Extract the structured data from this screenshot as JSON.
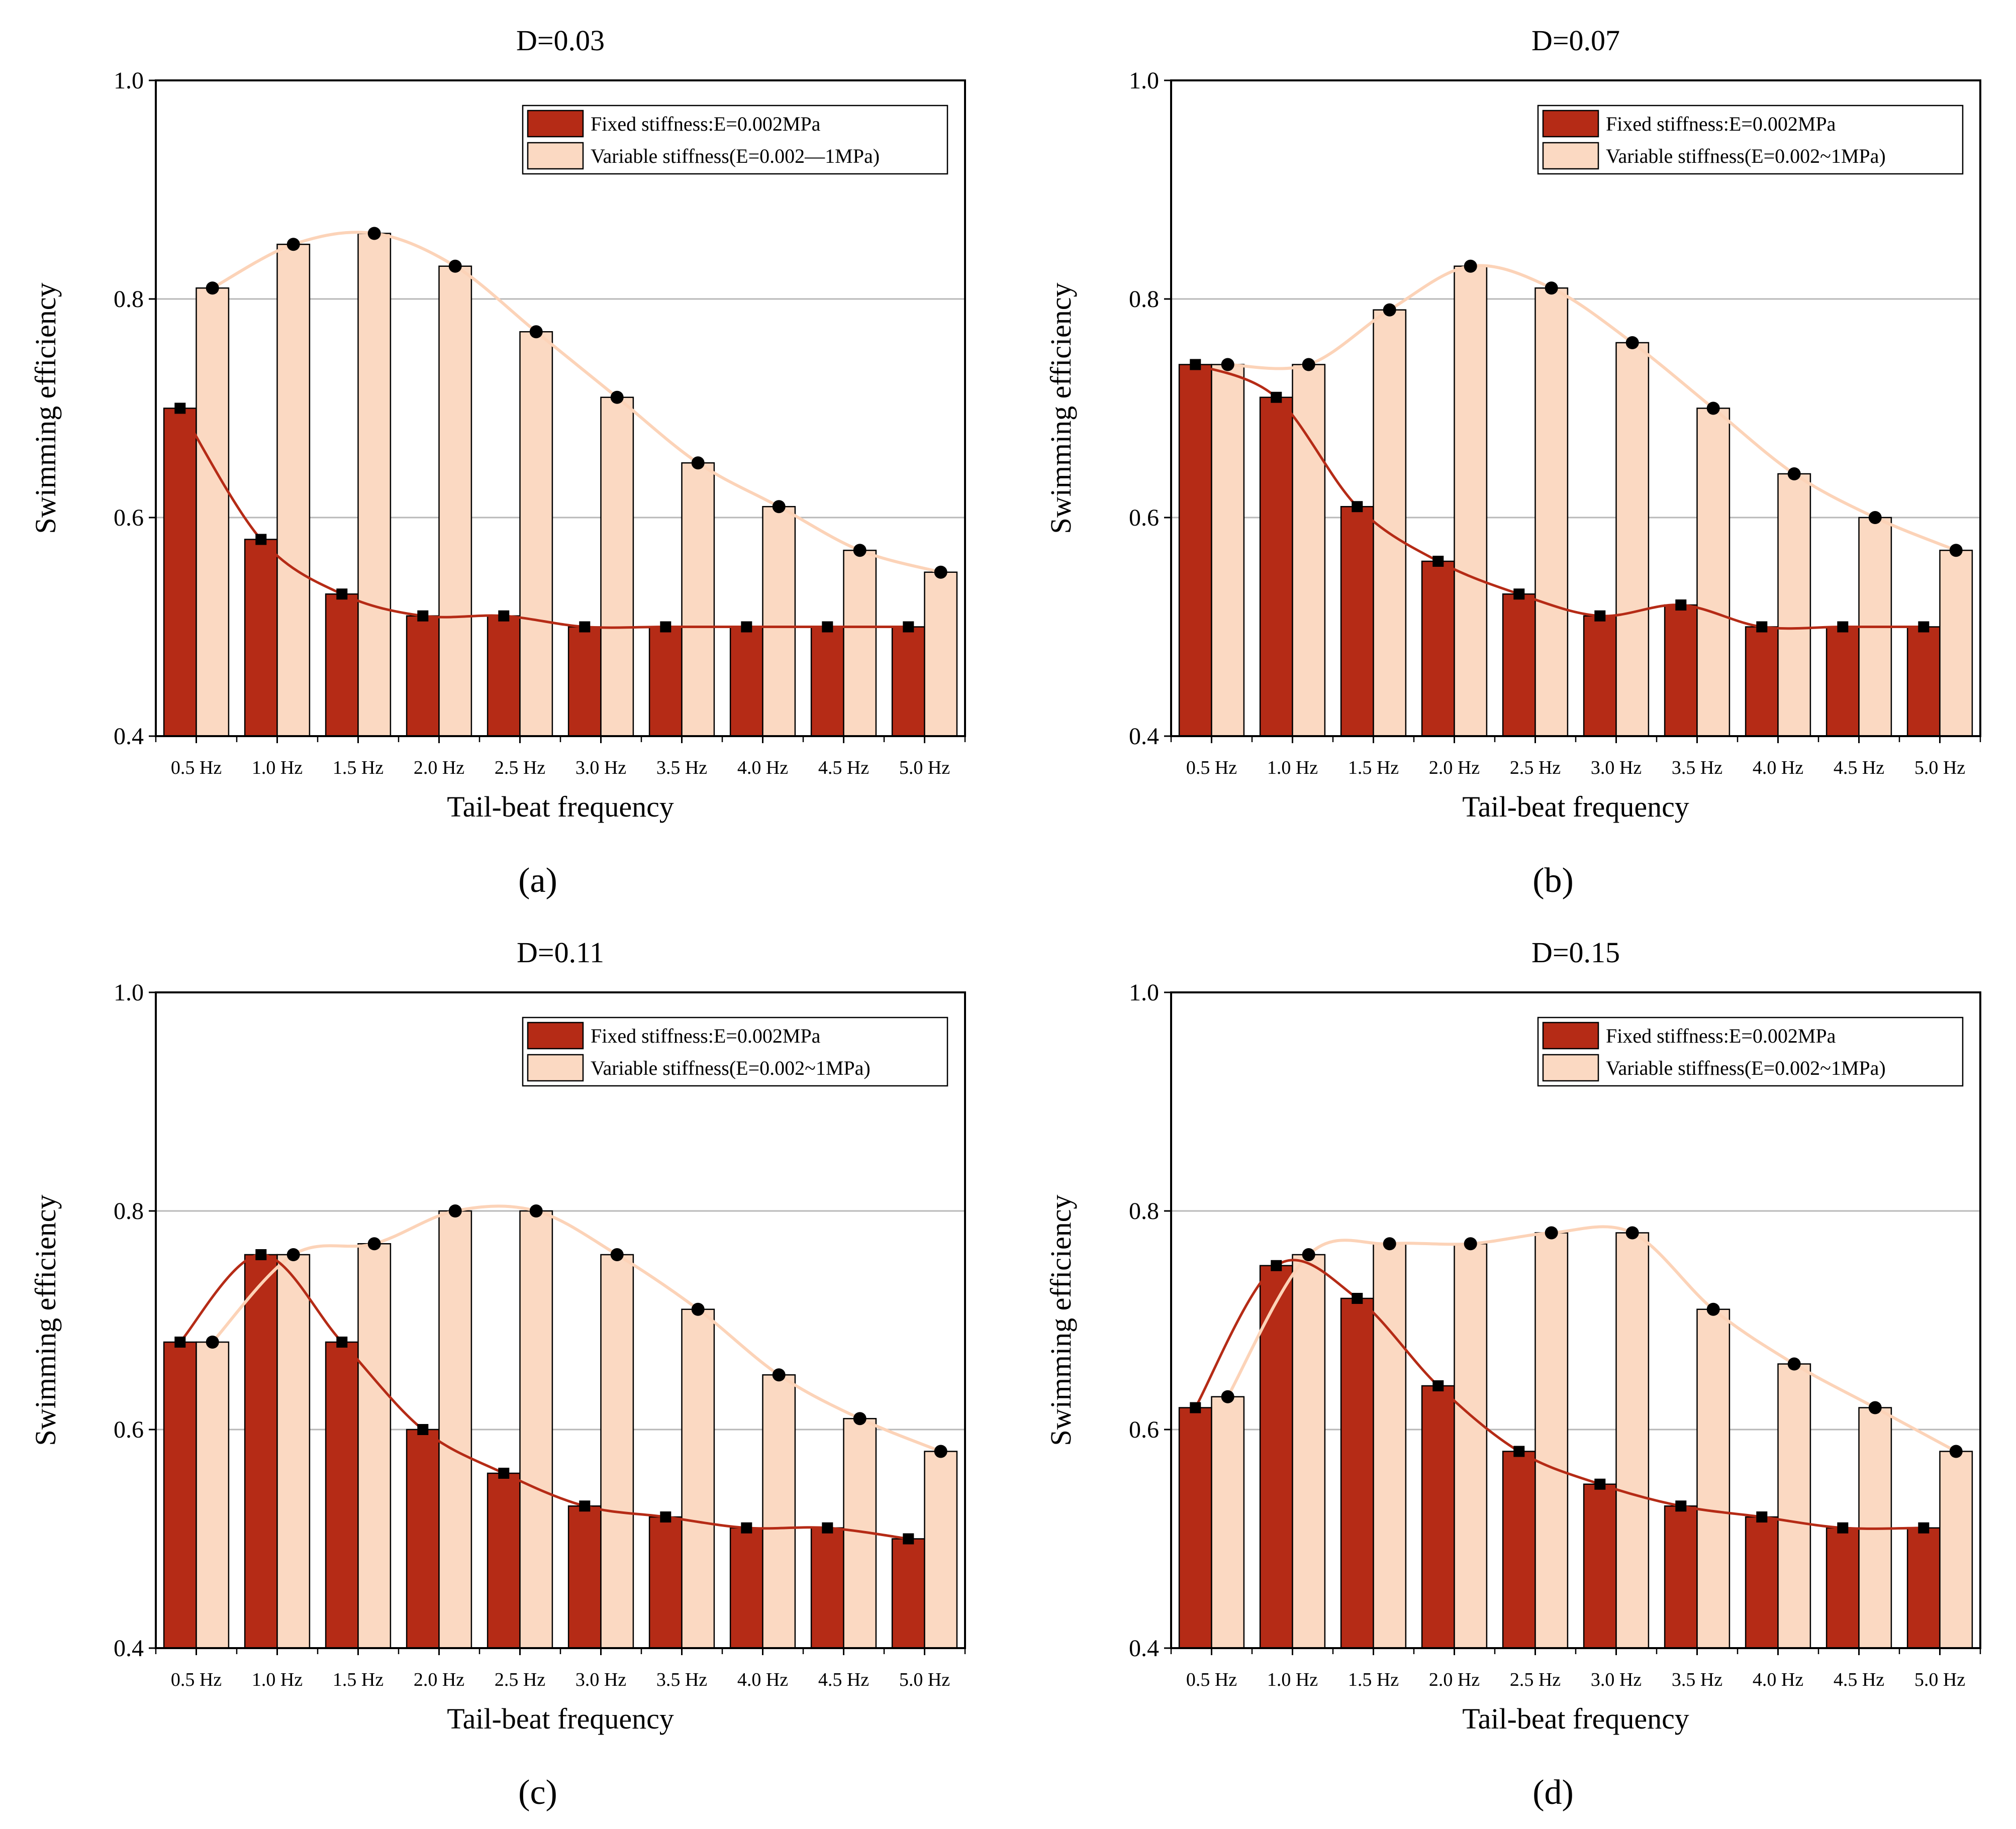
{
  "figure": {
    "legend_fixed": "Fixed stiffness:E=0.002MPa",
    "colors": {
      "fixed": "#b52b16",
      "variable": "#fbd9c2",
      "variable_line": "#fcd3b8",
      "grid": "#b8b8b8"
    }
  },
  "chart_data": [
    {
      "type": "bar",
      "panel_label": "(a)",
      "title": "D=0.03",
      "xlabel": "Tail-beat frequency",
      "ylabel": "Swimming efficiency",
      "ylim": [
        0.4,
        1.0
      ],
      "yticks": [
        "0.4",
        "0.6",
        "0.8",
        "1.0"
      ],
      "grid": true,
      "legend_position": "top-right",
      "categories": [
        "0.5 Hz",
        "1.0 Hz",
        "1.5 Hz",
        "2.0 Hz",
        "2.5 Hz",
        "3.0 Hz",
        "3.5 Hz",
        "4.0 Hz",
        "4.5 Hz",
        "5.0 Hz"
      ],
      "series": [
        {
          "name": "Fixed stiffness:E=0.002MPa",
          "values": [
            0.7,
            0.58,
            0.53,
            0.51,
            0.51,
            0.5,
            0.5,
            0.5,
            0.5,
            0.5
          ]
        },
        {
          "name": "Variable stiffness(E=0.002—1MPa)",
          "values": [
            0.81,
            0.85,
            0.86,
            0.83,
            0.77,
            0.71,
            0.65,
            0.61,
            0.57,
            0.55
          ]
        }
      ]
    },
    {
      "type": "bar",
      "panel_label": "(b)",
      "title": "D=0.07",
      "xlabel": "Tail-beat frequency",
      "ylabel": "Swimming efficiency",
      "ylim": [
        0.4,
        1.0
      ],
      "yticks": [
        "0.4",
        "0.6",
        "0.8",
        "1.0"
      ],
      "grid": true,
      "legend_position": "top-right",
      "categories": [
        "0.5 Hz",
        "1.0 Hz",
        "1.5 Hz",
        "2.0 Hz",
        "2.5 Hz",
        "3.0 Hz",
        "3.5 Hz",
        "4.0 Hz",
        "4.5 Hz",
        "5.0 Hz"
      ],
      "series": [
        {
          "name": "Fixed stiffness:E=0.002MPa",
          "values": [
            0.74,
            0.71,
            0.61,
            0.56,
            0.53,
            0.51,
            0.52,
            0.5,
            0.5,
            0.5
          ]
        },
        {
          "name": "Variable stiffness(E=0.002~1MPa)",
          "values": [
            0.74,
            0.74,
            0.79,
            0.83,
            0.81,
            0.76,
            0.7,
            0.64,
            0.6,
            0.57
          ]
        }
      ]
    },
    {
      "type": "bar",
      "panel_label": "(c)",
      "title": "D=0.11",
      "xlabel": "Tail-beat frequency",
      "ylabel": "Swimming efficiency",
      "ylim": [
        0.4,
        1.0
      ],
      "yticks": [
        "0.4",
        "0.6",
        "0.8",
        "1.0"
      ],
      "grid": true,
      "legend_position": "top-right",
      "categories": [
        "0.5 Hz",
        "1.0 Hz",
        "1.5 Hz",
        "2.0 Hz",
        "2.5 Hz",
        "3.0 Hz",
        "3.5 Hz",
        "4.0 Hz",
        "4.5 Hz",
        "5.0 Hz"
      ],
      "series": [
        {
          "name": "Fixed stiffness:E=0.002MPa",
          "values": [
            0.68,
            0.76,
            0.68,
            0.6,
            0.56,
            0.53,
            0.52,
            0.51,
            0.51,
            0.5
          ]
        },
        {
          "name": "Variable stiffness(E=0.002~1MPa)",
          "values": [
            0.68,
            0.76,
            0.77,
            0.8,
            0.8,
            0.76,
            0.71,
            0.65,
            0.61,
            0.58
          ]
        }
      ]
    },
    {
      "type": "bar",
      "panel_label": "(d)",
      "title": "D=0.15",
      "xlabel": "Tail-beat frequency",
      "ylabel": "Swimming efficiency",
      "ylim": [
        0.4,
        1.0
      ],
      "yticks": [
        "0.4",
        "0.6",
        "0.8",
        "1.0"
      ],
      "grid": true,
      "legend_position": "top-right",
      "categories": [
        "0.5 Hz",
        "1.0 Hz",
        "1.5 Hz",
        "2.0 Hz",
        "2.5 Hz",
        "3.0 Hz",
        "3.5 Hz",
        "4.0 Hz",
        "4.5 Hz",
        "5.0 Hz"
      ],
      "series": [
        {
          "name": "Fixed stiffness:E=0.002MPa",
          "values": [
            0.62,
            0.75,
            0.72,
            0.64,
            0.58,
            0.55,
            0.53,
            0.52,
            0.51,
            0.51
          ]
        },
        {
          "name": "Variable stiffness(E=0.002~1MPa)",
          "values": [
            0.63,
            0.76,
            0.77,
            0.77,
            0.78,
            0.78,
            0.71,
            0.66,
            0.62,
            0.58
          ]
        }
      ]
    }
  ]
}
